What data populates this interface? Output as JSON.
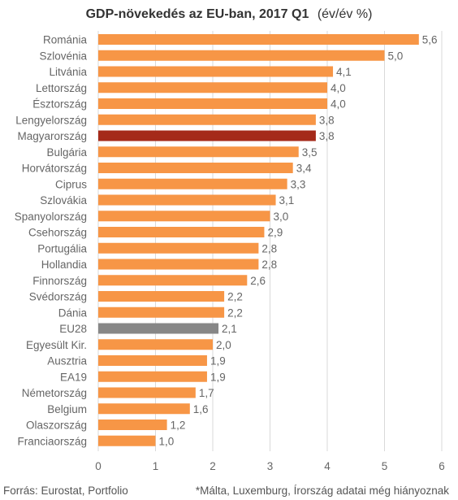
{
  "chart_data": {
    "type": "bar",
    "orientation": "horizontal",
    "title": "GDP-növekedés az EU-ban, 2017 Q1",
    "subtitle": "(év/év %)",
    "categories": [
      "Románia",
      "Szlovénia",
      "Litvánia",
      "Lettország",
      "Észtország",
      "Lengyelország",
      "Magyarország",
      "Bulgária",
      "Horvátország",
      "Ciprus",
      "Szlovákia",
      "Spanyolország",
      "Csehország",
      "Portugália",
      "Hollandia",
      "Finnország",
      "Svédország",
      "Dánia",
      "EU28",
      "Egyesült Kir.",
      "Ausztria",
      "EA19",
      "Németország",
      "Belgium",
      "Olaszország",
      "Franciaország"
    ],
    "values": [
      5.6,
      5.0,
      4.1,
      4.0,
      4.0,
      3.8,
      3.8,
      3.5,
      3.4,
      3.3,
      3.1,
      3.0,
      2.9,
      2.8,
      2.8,
      2.6,
      2.2,
      2.2,
      2.1,
      2.0,
      1.9,
      1.9,
      1.7,
      1.6,
      1.2,
      1.0
    ],
    "value_labels": [
      "5,6",
      "5,0",
      "4,1",
      "4,0",
      "4,0",
      "3,8",
      "3,8",
      "3,5",
      "3,4",
      "3,3",
      "3,1",
      "3,0",
      "2,9",
      "2,8",
      "2,8",
      "2,6",
      "2,2",
      "2,2",
      "2,1",
      "2,0",
      "1,9",
      "1,9",
      "1,7",
      "1,6",
      "1,2",
      "1,0"
    ],
    "xlim": [
      0,
      6
    ],
    "xticks": [
      0,
      1,
      2,
      3,
      4,
      5,
      6
    ],
    "xtick_labels": [
      "0",
      "1",
      "2",
      "3",
      "4",
      "5",
      "6"
    ],
    "grid": true,
    "legend": "none",
    "colors": {
      "default": "#F79646",
      "highlight": "#A52A1A",
      "aggregate": "#878787",
      "grid": "#D9D9D9"
    },
    "highlight_categories": [
      "Magyarország"
    ],
    "aggregate_categories": [
      "EU28"
    ]
  },
  "footer": {
    "source": "Forrás: Eurostat, Portfolio",
    "note": "*Málta, Luxemburg, Írország  adatai még hiányoznak"
  }
}
